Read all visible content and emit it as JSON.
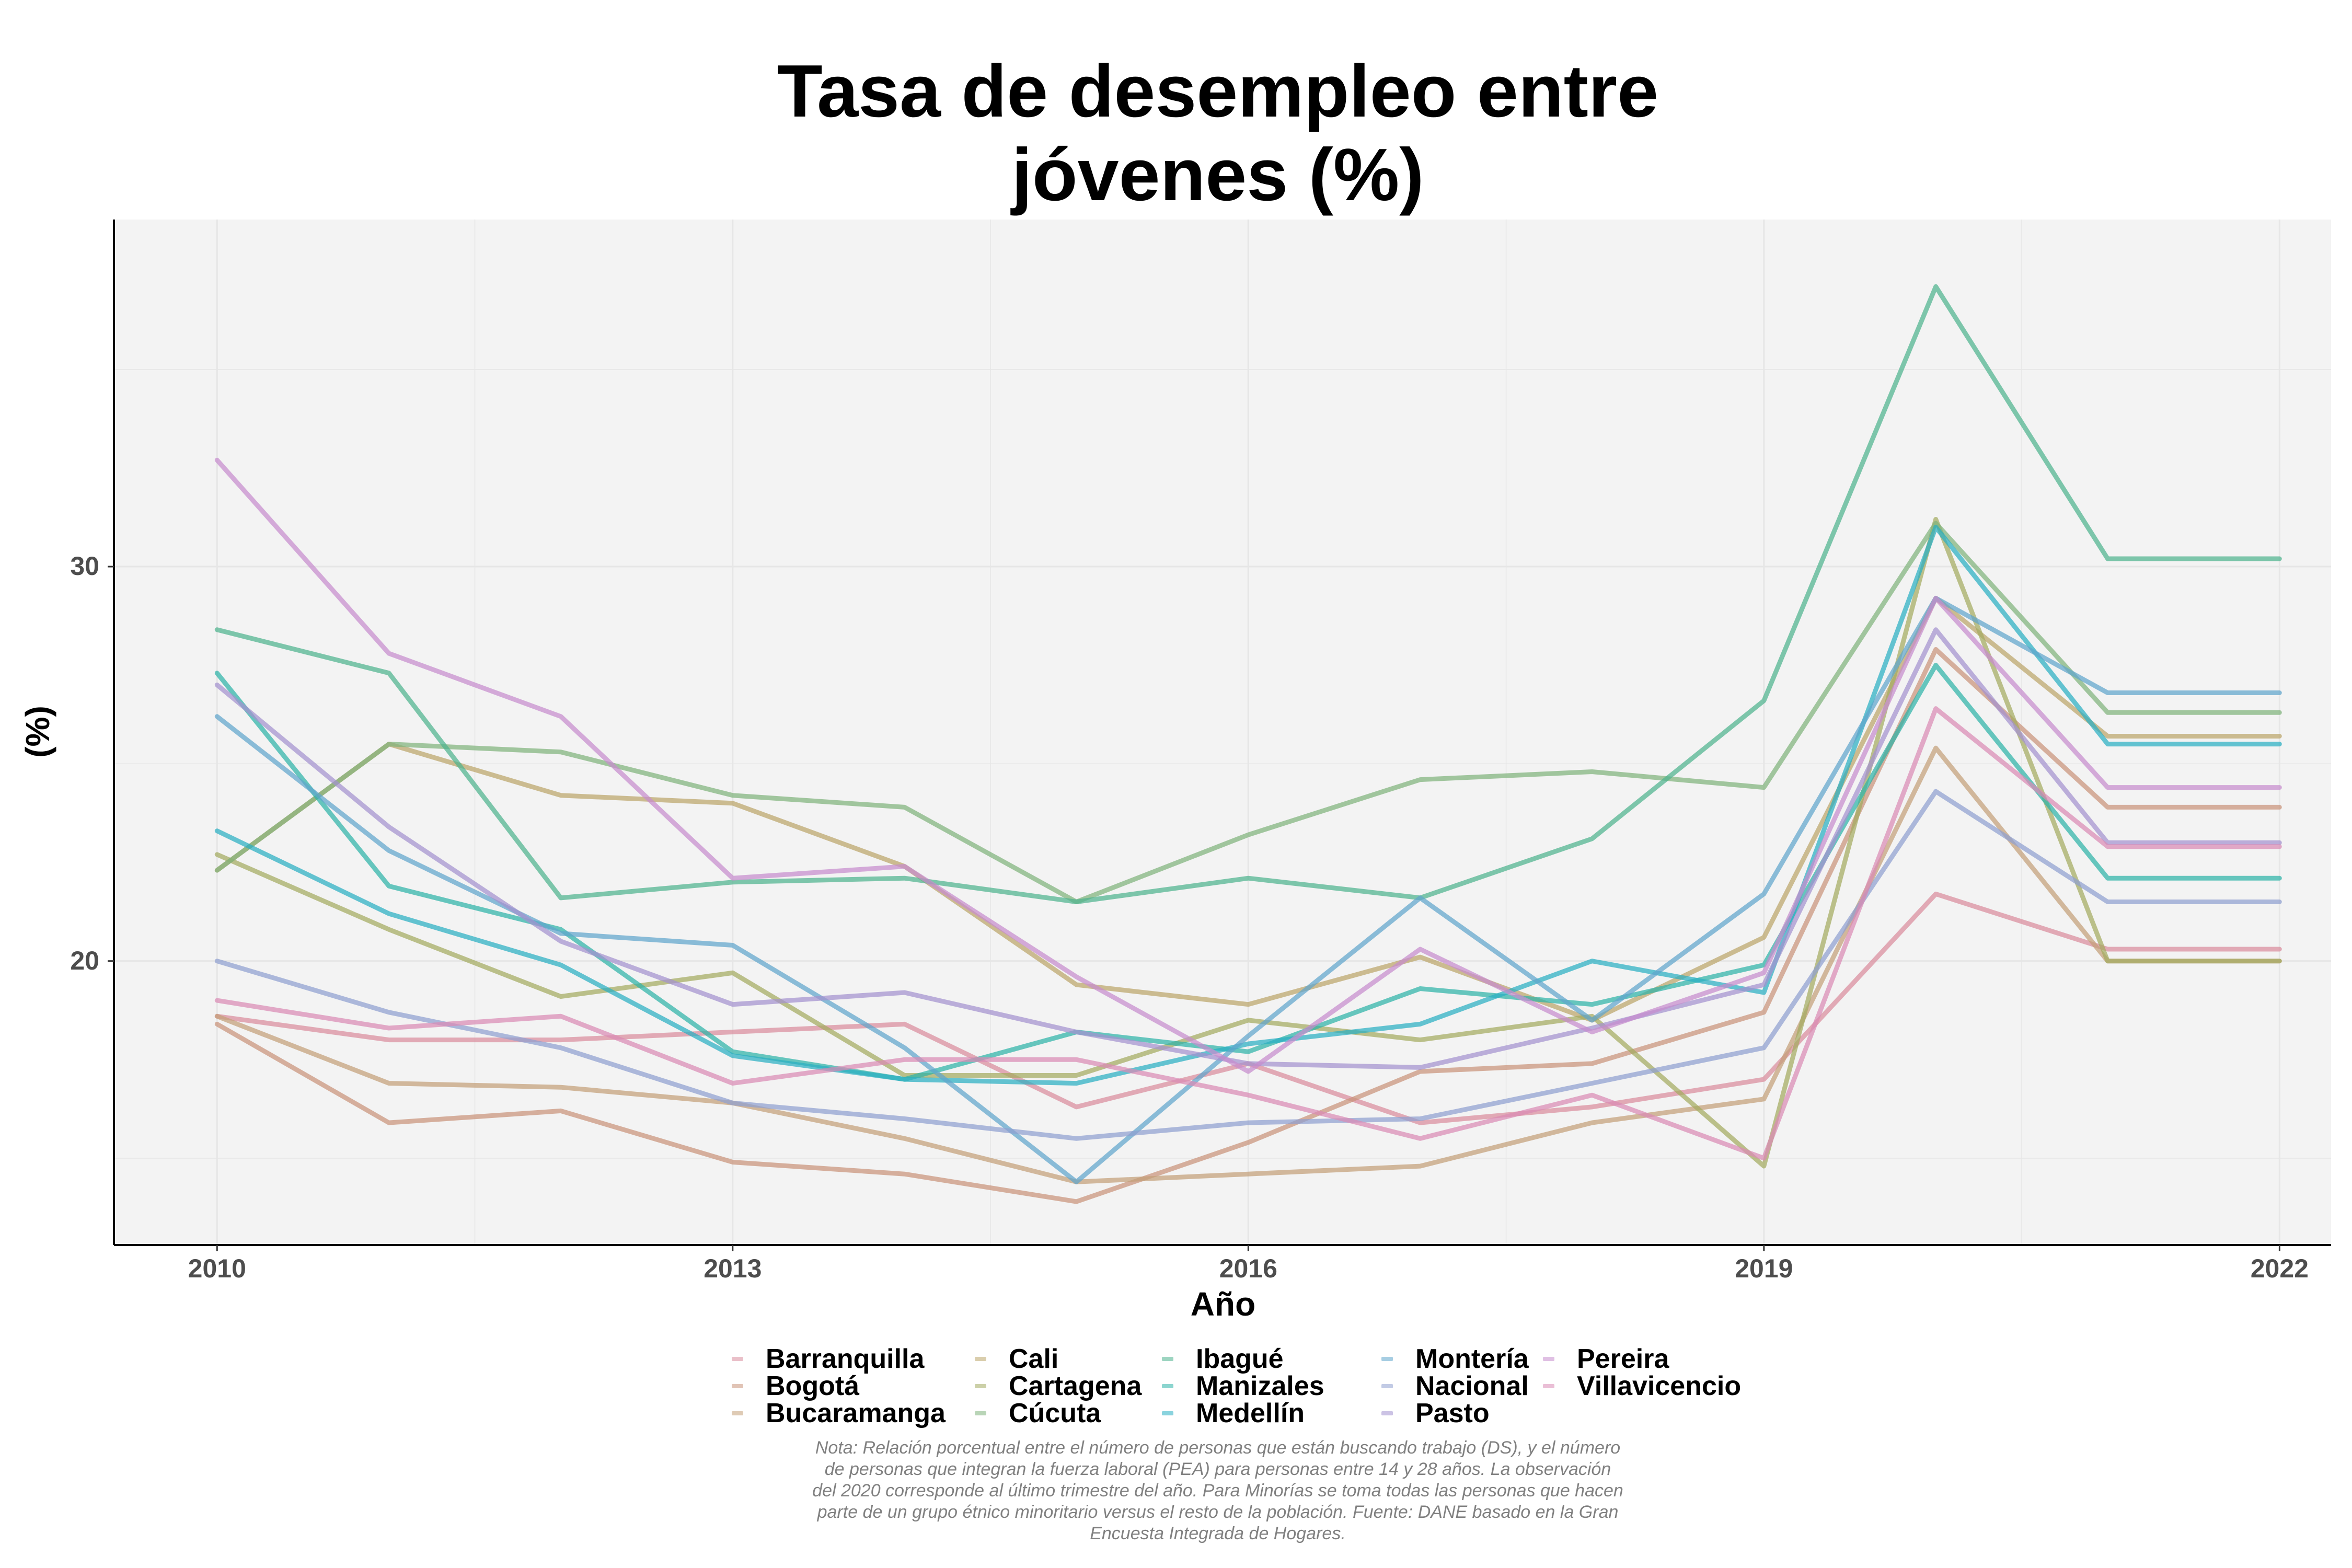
{
  "chart_data": {
    "type": "line",
    "title_lines": [
      "Tasa de desempleo entre",
      "jóvenes (%)"
    ],
    "xlabel": "Año",
    "ylabel": "(%)",
    "xlim": [
      2009.4,
      2022.3
    ],
    "ylim": [
      12.8,
      38.8
    ],
    "x_ticks": [
      "2010",
      "2013",
      "2016",
      "2019",
      "2022"
    ],
    "y_ticks": [
      "20",
      "30"
    ],
    "grid": true,
    "legend_position": "bottom",
    "x": [
      2010,
      2011,
      2012,
      2013,
      2014,
      2015,
      2016,
      2017,
      2018,
      2019,
      2020,
      2021,
      2022
    ],
    "series": [
      {
        "name": "Barranquilla",
        "color": "#d98c9c",
        "values": [
          18.6,
          18.0,
          18.0,
          18.2,
          18.4,
          16.3,
          17.4,
          15.9,
          16.3,
          17.0,
          21.7,
          20.3,
          20.3
        ]
      },
      {
        "name": "Bogotá",
        "color": "#c9937a",
        "values": [
          18.4,
          15.9,
          16.2,
          14.9,
          14.6,
          13.9,
          15.4,
          17.2,
          17.4,
          18.7,
          27.9,
          23.9,
          23.9
        ]
      },
      {
        "name": "Bucaramanga",
        "color": "#c4a078",
        "values": [
          18.6,
          16.9,
          16.8,
          16.4,
          15.5,
          14.4,
          14.6,
          14.8,
          15.9,
          16.5,
          25.4,
          20.0,
          20.0
        ]
      },
      {
        "name": "Cali",
        "color": "#bba569",
        "values": [
          22.3,
          25.5,
          24.2,
          24.0,
          22.4,
          19.4,
          18.9,
          20.1,
          18.5,
          20.6,
          29.2,
          25.7,
          25.7
        ]
      },
      {
        "name": "Cartagena",
        "color": "#a3aa60",
        "values": [
          22.7,
          20.8,
          19.1,
          19.7,
          17.1,
          17.1,
          18.5,
          18.0,
          18.6,
          14.8,
          31.2,
          20.0,
          20.0
        ]
      },
      {
        "name": "Cúcuta",
        "color": "#7fb37c",
        "values": [
          22.3,
          25.5,
          25.3,
          24.2,
          23.9,
          21.5,
          23.2,
          24.6,
          24.8,
          24.4,
          31.1,
          26.3,
          26.3
        ]
      },
      {
        "name": "Ibagué",
        "color": "#4db38e",
        "values": [
          28.4,
          27.3,
          21.6,
          22.0,
          22.1,
          21.5,
          22.1,
          21.6,
          23.1,
          26.6,
          37.1,
          30.2,
          30.2
        ]
      },
      {
        "name": "Manizales",
        "color": "#2eb3a8",
        "values": [
          27.3,
          21.9,
          20.8,
          17.7,
          17.0,
          18.2,
          17.7,
          19.3,
          18.9,
          19.9,
          27.5,
          22.1,
          22.1
        ]
      },
      {
        "name": "Medellín",
        "color": "#2aafc2",
        "values": [
          23.3,
          21.2,
          19.9,
          17.6,
          17.0,
          16.9,
          17.9,
          18.4,
          20.0,
          19.2,
          31.0,
          25.5,
          25.5
        ]
      },
      {
        "name": "Montería",
        "color": "#5fa5cc",
        "values": [
          26.2,
          22.8,
          20.7,
          20.4,
          17.8,
          14.4,
          18.1,
          21.6,
          18.5,
          21.7,
          29.2,
          26.8,
          26.8
        ]
      },
      {
        "name": "Nacional",
        "color": "#8fa0d0",
        "values": [
          20.0,
          18.7,
          17.8,
          16.4,
          16.0,
          15.5,
          15.9,
          16.0,
          16.9,
          17.8,
          24.3,
          21.5,
          21.5
        ]
      },
      {
        "name": "Pasto",
        "color": "#a392cf",
        "values": [
          27.0,
          23.4,
          20.5,
          18.9,
          19.2,
          18.2,
          17.4,
          17.3,
          18.3,
          19.4,
          28.4,
          23.0,
          23.0
        ]
      },
      {
        "name": "Pereira",
        "color": "#c68ccd",
        "values": [
          32.7,
          27.8,
          26.2,
          22.1,
          22.4,
          19.6,
          17.2,
          20.3,
          18.2,
          19.7,
          29.2,
          24.4,
          24.4
        ]
      },
      {
        "name": "Villavicencio",
        "color": "#d98ab4",
        "values": [
          19.0,
          18.3,
          18.6,
          16.9,
          17.5,
          17.5,
          16.6,
          15.5,
          16.6,
          15.0,
          26.4,
          22.9,
          22.9
        ]
      }
    ],
    "legend_items": [
      "Barranquilla",
      "Bogotá",
      "Bucaramanga",
      "Cali",
      "Cartagena",
      "Cúcuta",
      "Ibagué",
      "Manizales",
      "Medellín",
      "Montería",
      "Nacional",
      "Pasto",
      "Pereira",
      "Villavicencio"
    ],
    "caption_lines": [
      "Nota: Relación porcentual entre el número de personas que están buscando trabajo (DS), y el número",
      "de personas que integran la fuerza laboral (PEA) para personas entre 14 y 28 años. La observación",
      "del 2020 corresponde al último trimestre del año. Para Minorías se toma todas las personas que hacen",
      "parte de un grupo étnico minoritario versus el resto de la población. Fuente: DANE basado en la Gran",
      "Encuesta Integrada de Hogares."
    ]
  }
}
